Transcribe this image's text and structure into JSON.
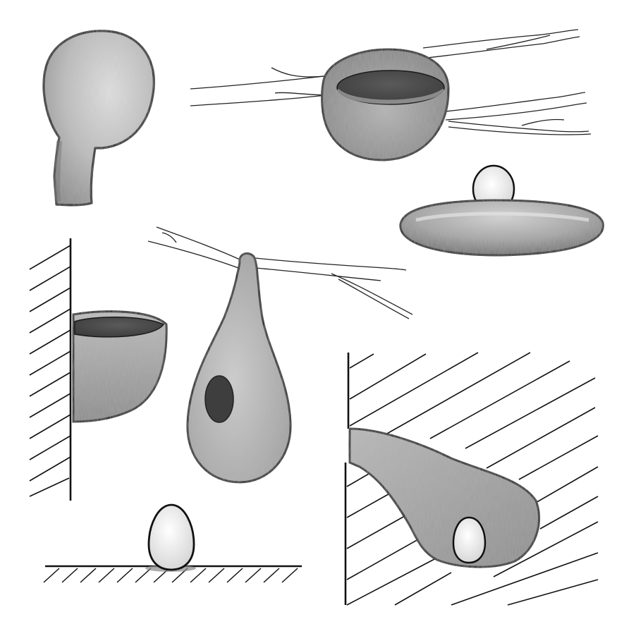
{
  "illustration": {
    "style": "pencil-shaded line drawing",
    "background_color": "#ffffff",
    "ink_color": "#111111",
    "nest_types": [
      {
        "id": "domed-nest",
        "icon": "domed-nest-with-entrance-tube"
      },
      {
        "id": "cup-nest-on-branch",
        "icon": "cup-nest-between-twigs"
      },
      {
        "id": "platform-nest",
        "icon": "flat-platform-nest-with-egg"
      },
      {
        "id": "wall-bracket-cup-nest",
        "icon": "half-cup-nest-on-wall"
      },
      {
        "id": "pendant-nest",
        "icon": "hanging-pouch-nest-with-side-entrance"
      },
      {
        "id": "ground-scrape",
        "icon": "egg-on-bare-ground"
      },
      {
        "id": "burrow-nest",
        "icon": "burrow-tunnel-with-egg"
      }
    ]
  }
}
